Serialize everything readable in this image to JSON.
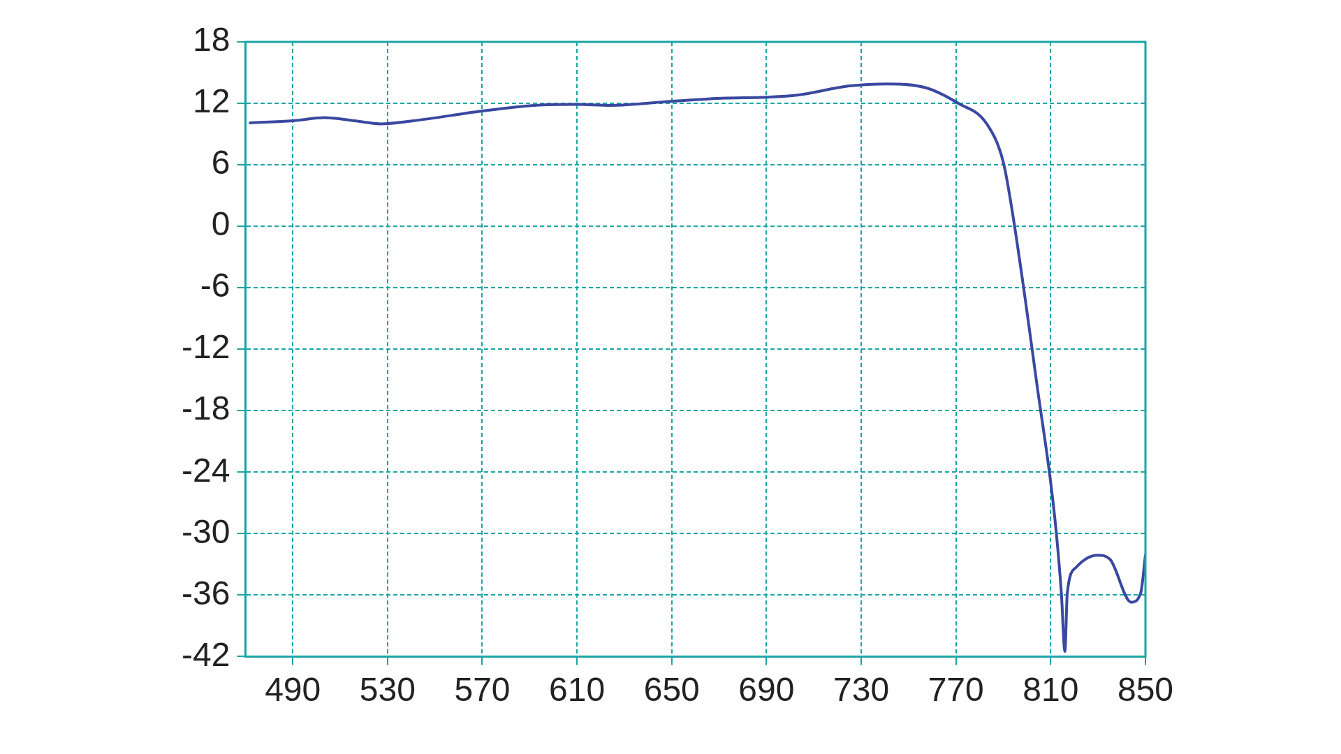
{
  "chart_data": {
    "type": "line",
    "x": [
      472,
      490,
      503.5,
      516,
      527,
      541,
      570,
      592,
      610,
      624,
      650,
      671,
      690,
      703,
      725,
      741,
      757.6,
      771,
      783,
      790,
      793.6,
      799,
      804.4,
      810,
      812.4,
      814.5,
      816,
      817,
      820.7,
      829.7,
      835,
      844,
      848,
      850
    ],
    "series": [
      {
        "color": "#3a48a0",
        "values": [
          10.1,
          10.3,
          10.6,
          10.3,
          10.0,
          10.3,
          11.25,
          11.8,
          11.9,
          11.8,
          12.2,
          12.5,
          12.6,
          12.8,
          13.7,
          13.9,
          13.5,
          12.0,
          10.0,
          6.25,
          1.7,
          -6.7,
          -15.8,
          -25,
          -30,
          -35.8,
          -41.5,
          -35.8,
          -33.3,
          -32.1,
          -32.5,
          -36.7,
          -35.8,
          -32.1
        ]
      }
    ],
    "xlim": [
      470,
      850
    ],
    "xticks": [
      490,
      530,
      570,
      610,
      650,
      690,
      730,
      770,
      810,
      850
    ],
    "ylim": [
      -42,
      18
    ],
    "yticks": [
      -42,
      -36,
      -30,
      -24,
      -18,
      -12,
      -6,
      0,
      6,
      12,
      18
    ],
    "grid": true,
    "legend": false,
    "marker": "none",
    "line_style": "solid"
  }
}
